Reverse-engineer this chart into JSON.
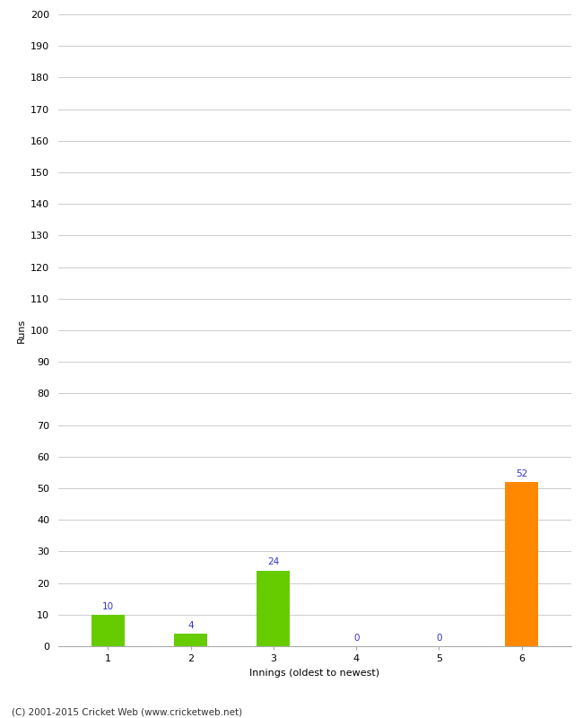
{
  "categories": [
    1,
    2,
    3,
    4,
    5,
    6
  ],
  "values": [
    10,
    4,
    24,
    0,
    0,
    52
  ],
  "bar_colors": [
    "#66cc00",
    "#66cc00",
    "#66cc00",
    "#66cc00",
    "#66cc00",
    "#ff8800"
  ],
  "xlabel": "Innings (oldest to newest)",
  "ylabel": "Runs",
  "ylim": [
    0,
    200
  ],
  "yticks": [
    0,
    10,
    20,
    30,
    40,
    50,
    60,
    70,
    80,
    90,
    100,
    110,
    120,
    130,
    140,
    150,
    160,
    170,
    180,
    190,
    200
  ],
  "label_color": "#3333cc",
  "label_fontsize": 7.5,
  "axis_label_fontsize": 8,
  "tick_fontsize": 8,
  "footer_text": "(C) 2001-2015 Cricket Web (www.cricketweb.net)",
  "background_color": "#ffffff",
  "grid_color": "#cccccc",
  "bar_width": 0.4
}
